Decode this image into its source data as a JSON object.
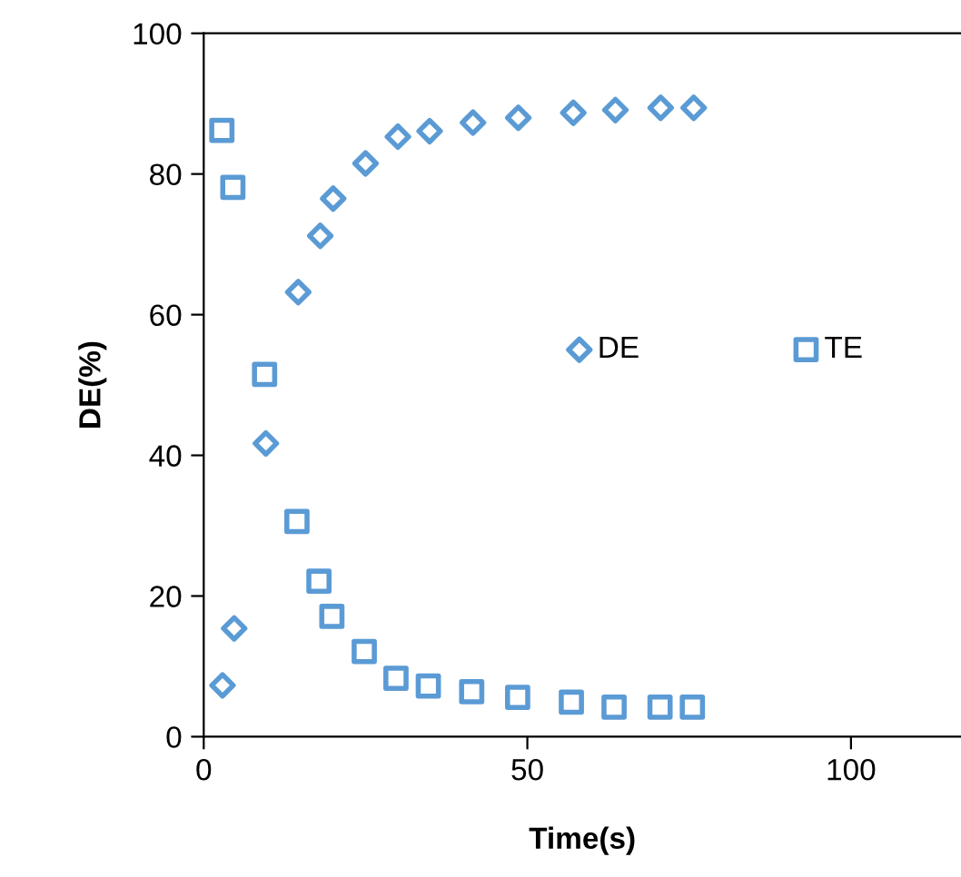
{
  "chart_data": {
    "type": "scatter",
    "xlabel": "Time(s)",
    "ylabel": "DE(%)",
    "xlim": [
      0,
      117
    ],
    "xticks": [
      0,
      50,
      100
    ],
    "ylim": [
      0,
      100
    ],
    "yticks": [
      0,
      20,
      40,
      60,
      80,
      100
    ],
    "grid": false,
    "legend": "right",
    "series": [
      {
        "name": "DE",
        "color": "#5b9bd5",
        "marker": "diamond",
        "x": [
          2.9,
          4.7,
          9.6,
          14.6,
          18.0,
          20.0,
          25.0,
          30.0,
          34.9,
          41.6,
          48.6,
          57.1,
          63.6,
          70.6,
          75.7
        ],
        "values": [
          7.3,
          15.4,
          41.7,
          63.2,
          71.2,
          76.5,
          81.5,
          85.3,
          86.1,
          87.3,
          88.0,
          88.7,
          89.1,
          89.4,
          89.4
        ]
      },
      {
        "name": "TE",
        "color": "#5b9bd5",
        "marker": "square",
        "x": [
          2.8,
          4.5,
          9.4,
          14.4,
          17.8,
          19.8,
          24.8,
          29.7,
          34.7,
          41.4,
          48.5,
          56.8,
          63.4,
          70.5,
          75.5
        ],
        "values": [
          86.2,
          78.1,
          51.5,
          30.6,
          22.1,
          17.1,
          12.1,
          8.3,
          7.2,
          6.4,
          5.6,
          4.9,
          4.2,
          4.2,
          4.2
        ]
      }
    ]
  }
}
